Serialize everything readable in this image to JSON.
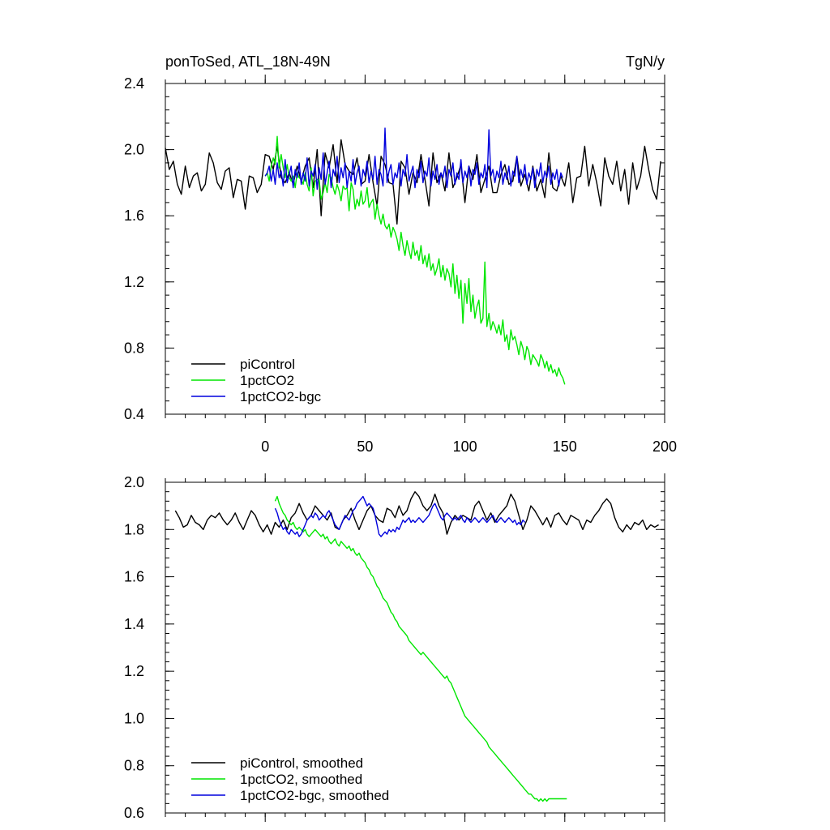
{
  "chart_data": [
    {
      "type": "line",
      "title": "ponToSed, ATL_18N-49N",
      "units": "TgN/y",
      "xlabel": "",
      "ylabel": "",
      "xlim": [
        -50,
        200
      ],
      "ylim": [
        0.4,
        2.4
      ],
      "xticks": [
        0,
        50,
        100,
        150,
        200
      ],
      "xtick_labels": [
        "0",
        "50",
        "100",
        "150",
        "200"
      ],
      "yticks": [
        0.4,
        0.8,
        1.2,
        1.6,
        2.0,
        2.4
      ],
      "ytick_labels": [
        "0.4",
        "0.8",
        "1.2",
        "1.6",
        "2.0",
        "2.4"
      ],
      "legend_position": "bottom-left",
      "series": [
        {
          "name": "piControl",
          "color": "#000000",
          "x_start": -50,
          "x_step": 2,
          "values": [
            2.01,
            1.88,
            1.93,
            1.79,
            1.73,
            1.9,
            1.77,
            1.84,
            1.86,
            1.75,
            1.79,
            1.98,
            1.92,
            1.8,
            1.76,
            1.87,
            1.89,
            1.71,
            1.82,
            1.81,
            1.64,
            1.84,
            1.83,
            1.74,
            1.79,
            1.97,
            1.96,
            1.88,
            2.02,
            1.83,
            1.8,
            1.86,
            1.79,
            1.9,
            1.81,
            1.9,
            1.95,
            1.77,
            2.0,
            1.6,
            1.98,
            1.89,
            2.03,
            1.8,
            2.06,
            1.91,
            1.87,
            1.85,
            1.95,
            1.79,
            1.81,
            1.97,
            1.8,
            1.66,
            1.96,
            1.91,
            1.8,
            1.79,
            1.55,
            1.93,
            1.89,
            1.73,
            1.86,
            1.8,
            1.97,
            1.82,
            1.66,
            1.98,
            1.8,
            1.86,
            1.75,
            1.98,
            1.77,
            1.83,
            1.91,
            1.68,
            1.9,
            1.82,
            1.97,
            1.74,
            1.82,
            1.9,
            1.74,
            1.74,
            1.85,
            1.91,
            1.79,
            1.81,
            1.96,
            1.78,
            1.85,
            1.75,
            1.9,
            1.75,
            1.82,
            1.71,
            1.98,
            1.77,
            1.75,
            1.84,
            1.78,
            1.92,
            1.68,
            1.83,
            1.84,
            2.02,
            1.78,
            1.91,
            1.8,
            1.66,
            1.95,
            1.84,
            1.79,
            1.93,
            1.75,
            1.88,
            1.67,
            1.92,
            1.76,
            1.84,
            2.02,
            1.88,
            1.76,
            1.7,
            1.93
          ]
        },
        {
          "name": "1pctCO2",
          "color": "#00e600",
          "x_start": 0,
          "x_step": 1,
          "values": [
            1.84,
            1.86,
            1.81,
            1.9,
            1.95,
            1.91,
            2.08,
            1.89,
            1.97,
            1.89,
            1.83,
            1.91,
            1.83,
            1.81,
            1.84,
            1.77,
            1.86,
            1.83,
            1.82,
            1.79,
            1.86,
            1.79,
            1.75,
            1.89,
            1.72,
            1.81,
            1.82,
            1.82,
            1.7,
            1.74,
            1.8,
            1.74,
            1.85,
            1.83,
            1.77,
            1.73,
            1.79,
            1.75,
            1.69,
            1.78,
            1.76,
            1.77,
            1.63,
            1.8,
            1.76,
            1.64,
            1.7,
            1.66,
            1.75,
            1.67,
            1.69,
            1.77,
            1.65,
            1.68,
            1.7,
            1.58,
            1.67,
            1.6,
            1.55,
            1.61,
            1.54,
            1.52,
            1.55,
            1.47,
            1.53,
            1.5,
            1.46,
            1.39,
            1.5,
            1.42,
            1.36,
            1.45,
            1.39,
            1.34,
            1.44,
            1.36,
            1.39,
            1.33,
            1.42,
            1.31,
            1.36,
            1.29,
            1.37,
            1.27,
            1.31,
            1.24,
            1.28,
            1.34,
            1.23,
            1.3,
            1.21,
            1.28,
            1.25,
            1.17,
            1.31,
            1.13,
            1.24,
            1.1,
            1.21,
            0.95,
            1.19,
            1.07,
            1.22,
            1.02,
            1.12,
            0.98,
            1.05,
            1.09,
            0.95,
            0.98,
            1.32,
            0.93,
            1.01,
            0.91,
            0.96,
            0.93,
            0.89,
            0.94,
            0.88,
            0.97,
            0.84,
            0.88,
            0.79,
            0.91,
            0.85,
            0.87,
            0.82,
            0.76,
            0.84,
            0.8,
            0.73,
            0.81,
            0.78,
            0.7,
            0.76,
            0.74,
            0.72,
            0.69,
            0.76,
            0.73,
            0.68,
            0.72,
            0.66,
            0.7,
            0.65,
            0.67,
            0.63,
            0.68,
            0.64,
            0.62,
            0.58
          ]
        },
        {
          "name": "1pctCO2-bgc",
          "color": "#0000dd",
          "x_start": 0,
          "x_step": 1,
          "values": [
            1.84,
            1.86,
            1.9,
            1.81,
            1.88,
            1.79,
            1.92,
            1.83,
            1.87,
            1.78,
            1.94,
            1.8,
            1.85,
            1.9,
            1.77,
            1.88,
            1.83,
            1.92,
            1.79,
            1.86,
            1.81,
            1.95,
            1.78,
            1.87,
            1.84,
            1.91,
            1.76,
            1.89,
            1.82,
            1.98,
            1.79,
            1.86,
            1.93,
            1.77,
            1.88,
            1.84,
            1.96,
            1.8,
            1.89,
            1.83,
            1.92,
            1.77,
            1.87,
            1.81,
            1.94,
            1.79,
            1.86,
            1.9,
            1.78,
            1.88,
            1.84,
            1.93,
            1.8,
            1.87,
            1.82,
            1.96,
            1.79,
            1.88,
            1.85,
            1.78,
            2.13,
            1.8,
            1.87,
            1.91,
            1.79,
            1.86,
            1.83,
            1.92,
            1.78,
            1.88,
            1.84,
            1.97,
            1.81,
            1.86,
            1.9,
            1.77,
            1.88,
            1.83,
            1.93,
            1.8,
            1.87,
            1.84,
            1.95,
            1.78,
            1.87,
            1.82,
            1.91,
            1.79,
            1.86,
            1.83,
            1.9,
            1.77,
            1.88,
            1.84,
            1.92,
            1.79,
            1.86,
            1.82,
            1.94,
            1.8,
            1.87,
            1.83,
            1.9,
            1.78,
            1.88,
            1.85,
            1.92,
            1.79,
            1.86,
            1.83,
            1.91,
            1.77,
            2.12,
            1.84,
            1.88,
            1.8,
            1.87,
            1.83,
            1.93,
            1.79,
            1.86,
            1.82,
            1.9,
            1.78,
            1.87,
            1.84,
            1.96,
            1.8,
            1.88,
            1.83,
            1.91,
            1.79,
            1.86,
            1.82,
            1.89,
            1.77,
            1.88,
            1.84,
            1.92,
            1.8,
            1.87,
            1.83,
            1.9,
            1.79,
            1.86,
            1.82,
            1.88,
            1.78,
            1.86,
            1.83
          ]
        }
      ]
    },
    {
      "type": "line",
      "title": "",
      "xlabel": "",
      "ylabel": "",
      "xlim": [
        -50,
        200
      ],
      "ylim": [
        0.6,
        2.0
      ],
      "xticks": [
        0,
        50,
        100,
        150,
        200
      ],
      "yticks": [
        0.6,
        0.8,
        1.0,
        1.2,
        1.4,
        1.6,
        1.8,
        2.0
      ],
      "ytick_labels": [
        "0.6",
        "0.8",
        "1.0",
        "1.2",
        "1.4",
        "1.6",
        "1.8",
        "2.0"
      ],
      "legend_position": "bottom-left",
      "series": [
        {
          "name": "piControl, smoothed",
          "color": "#000000",
          "x_start": -45,
          "x_step": 2,
          "values": [
            1.88,
            1.85,
            1.81,
            1.82,
            1.86,
            1.83,
            1.82,
            1.8,
            1.84,
            1.86,
            1.85,
            1.87,
            1.84,
            1.82,
            1.84,
            1.87,
            1.83,
            1.8,
            1.84,
            1.88,
            1.86,
            1.82,
            1.79,
            1.82,
            1.78,
            1.83,
            1.81,
            1.84,
            1.8,
            1.85,
            1.87,
            1.91,
            1.87,
            1.84,
            1.86,
            1.9,
            1.88,
            1.86,
            1.84,
            1.87,
            1.81,
            1.8,
            1.84,
            1.86,
            1.89,
            1.84,
            1.8,
            1.84,
            1.88,
            1.9,
            1.86,
            1.84,
            1.83,
            1.89,
            1.88,
            1.85,
            1.9,
            1.86,
            1.88,
            1.93,
            1.96,
            1.94,
            1.9,
            1.88,
            1.9,
            1.95,
            1.9,
            1.87,
            1.78,
            1.83,
            1.86,
            1.84,
            1.86,
            1.85,
            1.84,
            1.9,
            1.92,
            1.88,
            1.84,
            1.87,
            1.83,
            1.86,
            1.88,
            1.9,
            1.95,
            1.92,
            1.86,
            1.8,
            1.84,
            1.9,
            1.88,
            1.85,
            1.82,
            1.85,
            1.81,
            1.86,
            1.87,
            1.84,
            1.82,
            1.86,
            1.85,
            1.84,
            1.8,
            1.84,
            1.83,
            1.86,
            1.88,
            1.91,
            1.93,
            1.91,
            1.85,
            1.81,
            1.79,
            1.82,
            1.8,
            1.83,
            1.82,
            1.84,
            1.8,
            1.82,
            1.81,
            1.82
          ]
        },
        {
          "name": "1pctCO2, smoothed",
          "color": "#00e600",
          "x_start": 5,
          "x_step": 1,
          "values": [
            1.92,
            1.94,
            1.91,
            1.89,
            1.87,
            1.86,
            1.84,
            1.83,
            1.82,
            1.83,
            1.81,
            1.8,
            1.81,
            1.8,
            1.79,
            1.8,
            1.78,
            1.77,
            1.78,
            1.79,
            1.8,
            1.79,
            1.78,
            1.77,
            1.78,
            1.76,
            1.77,
            1.75,
            1.74,
            1.75,
            1.76,
            1.74,
            1.73,
            1.75,
            1.74,
            1.73,
            1.72,
            1.73,
            1.71,
            1.72,
            1.7,
            1.69,
            1.7,
            1.68,
            1.67,
            1.66,
            1.64,
            1.63,
            1.61,
            1.6,
            1.58,
            1.56,
            1.55,
            1.53,
            1.51,
            1.5,
            1.49,
            1.47,
            1.45,
            1.44,
            1.42,
            1.41,
            1.39,
            1.38,
            1.37,
            1.36,
            1.35,
            1.33,
            1.32,
            1.31,
            1.3,
            1.29,
            1.28,
            1.27,
            1.28,
            1.27,
            1.26,
            1.25,
            1.24,
            1.23,
            1.22,
            1.21,
            1.2,
            1.19,
            1.18,
            1.17,
            1.18,
            1.16,
            1.15,
            1.13,
            1.11,
            1.09,
            1.07,
            1.05,
            1.03,
            1.01,
            1.0,
            0.99,
            0.98,
            0.97,
            0.96,
            0.95,
            0.94,
            0.93,
            0.92,
            0.91,
            0.9,
            0.88,
            0.87,
            0.86,
            0.85,
            0.84,
            0.83,
            0.82,
            0.81,
            0.8,
            0.79,
            0.78,
            0.77,
            0.76,
            0.75,
            0.74,
            0.73,
            0.72,
            0.71,
            0.7,
            0.69,
            0.68,
            0.68,
            0.67,
            0.66,
            0.66,
            0.65,
            0.66,
            0.65,
            0.66,
            0.65,
            0.66,
            0.66,
            0.66,
            0.66,
            0.66,
            0.66,
            0.66,
            0.66,
            0.66,
            0.66
          ]
        },
        {
          "name": "1pctCO2-bgc, smoothed",
          "color": "#0000dd",
          "x_start": 5,
          "x_step": 1,
          "values": [
            1.89,
            1.87,
            1.84,
            1.82,
            1.8,
            1.81,
            1.79,
            1.78,
            1.8,
            1.79,
            1.78,
            1.79,
            1.77,
            1.78,
            1.8,
            1.82,
            1.84,
            1.85,
            1.86,
            1.85,
            1.87,
            1.86,
            1.84,
            1.85,
            1.86,
            1.85,
            1.87,
            1.88,
            1.86,
            1.84,
            1.82,
            1.81,
            1.8,
            1.82,
            1.84,
            1.86,
            1.85,
            1.84,
            1.86,
            1.88,
            1.89,
            1.91,
            1.92,
            1.93,
            1.94,
            1.92,
            1.9,
            1.91,
            1.9,
            1.89,
            1.86,
            1.82,
            1.78,
            1.77,
            1.78,
            1.79,
            1.78,
            1.8,
            1.79,
            1.8,
            1.79,
            1.81,
            1.8,
            1.82,
            1.84,
            1.83,
            1.84,
            1.85,
            1.83,
            1.84,
            1.83,
            1.84,
            1.85,
            1.84,
            1.83,
            1.84,
            1.85,
            1.86,
            1.88,
            1.9,
            1.91,
            1.89,
            1.87,
            1.85,
            1.84,
            1.86,
            1.87,
            1.86,
            1.85,
            1.84,
            1.85,
            1.84,
            1.85,
            1.86,
            1.84,
            1.83,
            1.85,
            1.84,
            1.83,
            1.84,
            1.85,
            1.84,
            1.83,
            1.84,
            1.85,
            1.84,
            1.83,
            1.84,
            1.85,
            1.86,
            1.84,
            1.83,
            1.84,
            1.85,
            1.84,
            1.83,
            1.84,
            1.85,
            1.84,
            1.83,
            1.84,
            1.82,
            1.83,
            1.82,
            1.84,
            1.83
          ]
        }
      ]
    }
  ]
}
